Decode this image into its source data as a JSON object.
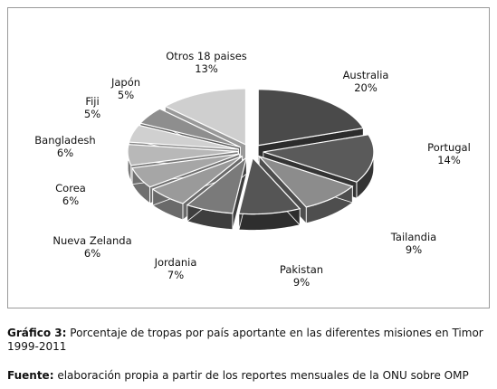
{
  "chart_data": {
    "type": "pie",
    "slices": [
      {
        "label": "Australia",
        "value_label": "20%",
        "value": 20,
        "color": "#4a4a4a",
        "side": "#2c2c2c"
      },
      {
        "label": "Portugal",
        "value_label": "14%",
        "value": 14,
        "color": "#5a5a5a",
        "side": "#343434"
      },
      {
        "label": "Tailandia",
        "value_label": "9%",
        "value": 9,
        "color": "#8c8c8c",
        "side": "#4e4e4e"
      },
      {
        "label": "Pakistan",
        "value_label": "9%",
        "value": 9,
        "color": "#555555",
        "side": "#2e2e2e"
      },
      {
        "label": "Jordania",
        "value_label": "7%",
        "value": 7,
        "color": "#7a7a7a",
        "side": "#3e3e3e"
      },
      {
        "label": "Nueva Zelanda",
        "value_label": "6%",
        "value": 6,
        "color": "#9a9a9a",
        "side": "#6a6a6a"
      },
      {
        "label": "Corea",
        "value_label": "6%",
        "value": 6,
        "color": "#a6a6a6",
        "side": "#707070"
      },
      {
        "label": "Bangladesh",
        "value_label": "6%",
        "value": 6,
        "color": "#b8b8b8",
        "side": "#7a7a7a"
      },
      {
        "label": "Fiji",
        "value_label": "5%",
        "value": 5,
        "color": "#d0d0d0",
        "side": "#8a8a8a"
      },
      {
        "label": "Japón",
        "value_label": "5%",
        "value": 5,
        "color": "#8e8e8e",
        "side": "#5a5a5a"
      },
      {
        "label": "Otros 18 paises",
        "value_label": "13%",
        "value": 13,
        "color": "#cfcfcf",
        "side": "#9a9a9a"
      }
    ]
  },
  "caption": {
    "prefix": "Gráfico 3:",
    "text": " Porcentaje de tropas por país aportante en las diferentes misiones en Timor 1999-2011"
  },
  "source": {
    "prefix": "Fuente:",
    "text": " elaboración propia a partir de los reportes mensuales de la ONU sobre OMP"
  }
}
